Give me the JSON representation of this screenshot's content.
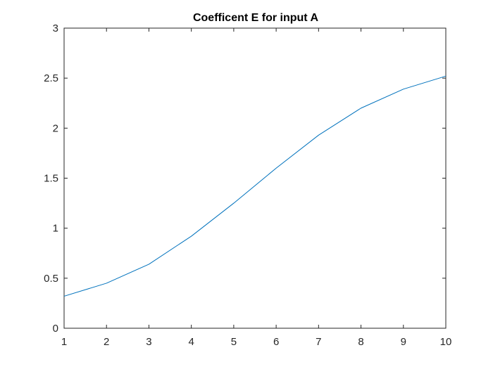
{
  "chart_data": {
    "type": "line",
    "title": "Coefficent E for input A",
    "xlabel": "",
    "ylabel": "",
    "xlim": [
      1,
      10
    ],
    "ylim": [
      0,
      3
    ],
    "xticks": [
      1,
      2,
      3,
      4,
      5,
      6,
      7,
      8,
      9,
      10
    ],
    "xtick_labels": [
      "1",
      "2",
      "3",
      "4",
      "5",
      "6",
      "7",
      "8",
      "9",
      "10"
    ],
    "yticks": [
      0,
      0.5,
      1,
      1.5,
      2,
      2.5,
      3
    ],
    "ytick_labels": [
      "0",
      "0.5",
      "1",
      "1.5",
      "2",
      "2.5",
      "3"
    ],
    "grid": false,
    "box": true,
    "series": [
      {
        "color": "#0072BD",
        "x": [
          1,
          2,
          3,
          4,
          5,
          6,
          7,
          8,
          9,
          10
        ],
        "y": [
          0.32,
          0.45,
          0.64,
          0.92,
          1.25,
          1.6,
          1.93,
          2.2,
          2.39,
          2.52
        ]
      }
    ]
  },
  "colors": {
    "axis": "#262626",
    "background": "#ffffff"
  }
}
